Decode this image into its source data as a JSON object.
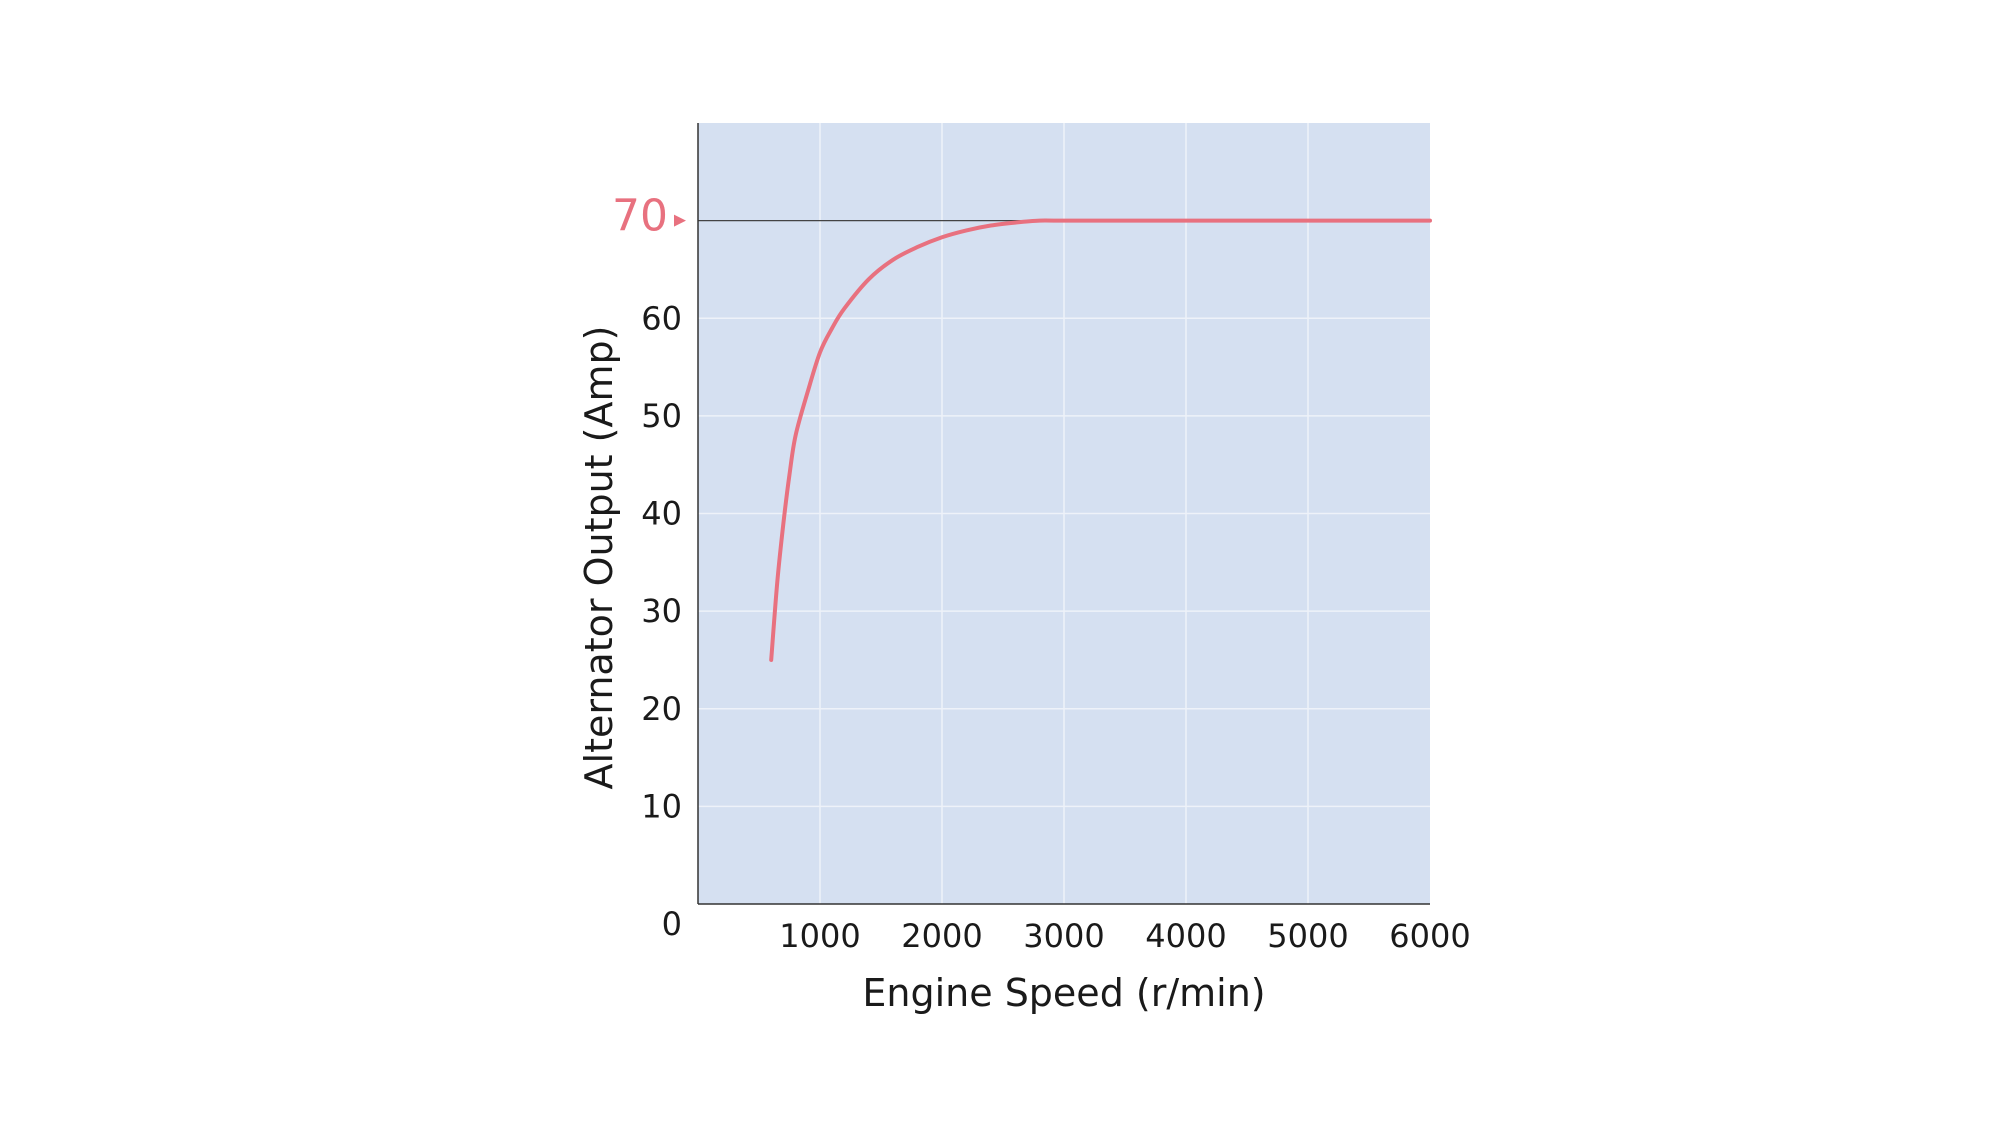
{
  "chart_data": {
    "type": "line",
    "title": "",
    "xlabel": "Engine Speed (r/min)",
    "ylabel": "Alternator Output (Amp)",
    "xlim": [
      0,
      6000
    ],
    "ylim": [
      0,
      80
    ],
    "x_ticks": [
      1000,
      2000,
      3000,
      4000,
      5000,
      6000
    ],
    "y_ticks": [
      0,
      10,
      20,
      30,
      40,
      50,
      60
    ],
    "max_marker": {
      "value": 70,
      "label": "70"
    },
    "grid": true,
    "legend": "none",
    "series": [
      {
        "x": [
          600,
          650,
          700,
          750,
          800,
          900,
          1000,
          1100,
          1200,
          1400,
          1600,
          1800,
          2000,
          2200,
          2400,
          2600,
          2800,
          3000,
          4000,
          5000,
          6000
        ],
        "y": [
          25,
          33,
          39,
          44,
          48,
          52.5,
          56.5,
          59,
          61,
          64,
          66,
          67.3,
          68.3,
          69,
          69.5,
          69.8,
          70,
          70,
          70,
          70,
          70
        ]
      }
    ]
  },
  "colors": {
    "plot_background": "#d5e0f1",
    "grid": "#eef2f9",
    "axis": "#333333",
    "curve": "#e8717f",
    "max_label": "#e8717f"
  }
}
